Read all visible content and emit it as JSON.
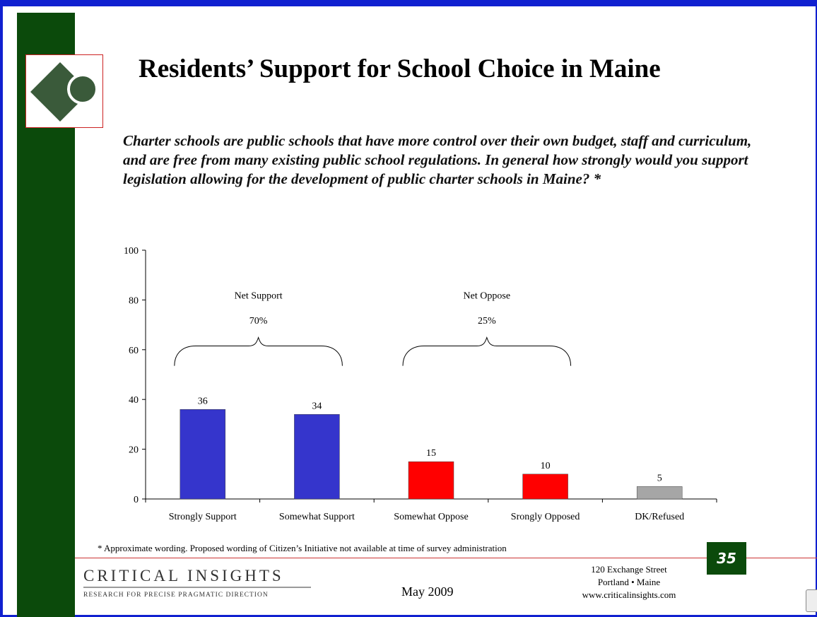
{
  "slide": {
    "title": "Residents’ Support for School Choice in Maine",
    "question": "Charter schools are public schools that have more control over their own budget, staff and curriculum, and are free from many existing public school regulations. In general how strongly would you support legislation allowing for the development of public charter schools in Maine? *",
    "footnote": "* Approximate wording. Proposed wording of Citizen’s Initiative not available at time of survey administration",
    "page_number": "35",
    "date": "May 2009"
  },
  "brand": {
    "name": "CRITICAL INSIGHTS",
    "tagline": "RESEARCH FOR PRECISE PRAGMATIC DIRECTION",
    "address": [
      "120 Exchange Street",
      "Portland • Maine",
      "www.criticalinsights.com"
    ]
  },
  "colors": {
    "frame": "#1020d0",
    "sidebar": "#0b4a0b",
    "support": "#3535cc",
    "oppose": "#ff0000",
    "dk": "#a6a6a6"
  },
  "chart_data": {
    "type": "bar",
    "categories": [
      "Strongly Support",
      "Somewhat Support",
      "Somewhat Oppose",
      "Srongly Opposed",
      "DK/Refused"
    ],
    "values": [
      36,
      34,
      15,
      10,
      5
    ],
    "bar_colors": [
      "#3535cc",
      "#3535cc",
      "#ff0000",
      "#ff0000",
      "#a6a6a6"
    ],
    "ylim": [
      0,
      100
    ],
    "yticks": [
      0,
      20,
      40,
      60,
      80,
      100
    ],
    "grid": false,
    "groups": [
      {
        "label": "Net Support",
        "value": "70%",
        "from": 0,
        "to": 1
      },
      {
        "label": "Net Oppose",
        "value": "25%",
        "from": 2,
        "to": 3
      }
    ]
  }
}
